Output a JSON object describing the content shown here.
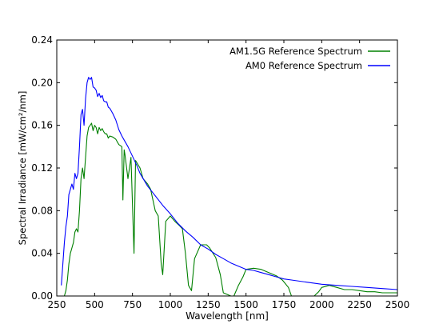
{
  "chart_data": {
    "type": "line",
    "title": "",
    "xlabel": "Wavelength [nm]",
    "ylabel": "Spectral Irradiance [mW/cm²/nm]",
    "xlim": [
      250,
      2500
    ],
    "ylim": [
      0,
      0.24
    ],
    "x_ticks": [
      "250",
      "500",
      "750",
      "1000",
      "1250",
      "1500",
      "1750",
      "2000",
      "2250",
      "2500"
    ],
    "y_ticks": [
      "0.00",
      "0.04",
      "0.08",
      "0.12",
      "0.16",
      "0.20",
      "0.24"
    ],
    "grid": false,
    "legend_position": "top-right",
    "series": [
      {
        "name": "AM1.5G Reference Spectrum",
        "color": "#008000",
        "points": [
          [
            280,
            0.0
          ],
          [
            300,
            0.0
          ],
          [
            310,
            0.005
          ],
          [
            320,
            0.015
          ],
          [
            330,
            0.03
          ],
          [
            340,
            0.04
          ],
          [
            350,
            0.045
          ],
          [
            360,
            0.05
          ],
          [
            370,
            0.06
          ],
          [
            380,
            0.063
          ],
          [
            390,
            0.06
          ],
          [
            400,
            0.08
          ],
          [
            410,
            0.11
          ],
          [
            420,
            0.12
          ],
          [
            430,
            0.11
          ],
          [
            440,
            0.13
          ],
          [
            450,
            0.15
          ],
          [
            460,
            0.158
          ],
          [
            470,
            0.16
          ],
          [
            480,
            0.162
          ],
          [
            490,
            0.155
          ],
          [
            500,
            0.16
          ],
          [
            510,
            0.158
          ],
          [
            520,
            0.152
          ],
          [
            530,
            0.158
          ],
          [
            540,
            0.155
          ],
          [
            550,
            0.157
          ],
          [
            560,
            0.154
          ],
          [
            570,
            0.152
          ],
          [
            580,
            0.152
          ],
          [
            590,
            0.148
          ],
          [
            600,
            0.15
          ],
          [
            620,
            0.149
          ],
          [
            640,
            0.147
          ],
          [
            660,
            0.142
          ],
          [
            680,
            0.14
          ],
          [
            687,
            0.09
          ],
          [
            695,
            0.137
          ],
          [
            700,
            0.133
          ],
          [
            720,
            0.11
          ],
          [
            740,
            0.13
          ],
          [
            760,
            0.04
          ],
          [
            770,
            0.127
          ],
          [
            800,
            0.12
          ],
          [
            820,
            0.11
          ],
          [
            850,
            0.105
          ],
          [
            870,
            0.1
          ],
          [
            900,
            0.08
          ],
          [
            920,
            0.075
          ],
          [
            940,
            0.03
          ],
          [
            950,
            0.02
          ],
          [
            970,
            0.07
          ],
          [
            1000,
            0.075
          ],
          [
            1030,
            0.07
          ],
          [
            1060,
            0.066
          ],
          [
            1080,
            0.063
          ],
          [
            1100,
            0.04
          ],
          [
            1120,
            0.01
          ],
          [
            1140,
            0.005
          ],
          [
            1160,
            0.035
          ],
          [
            1200,
            0.048
          ],
          [
            1240,
            0.048
          ],
          [
            1260,
            0.045
          ],
          [
            1300,
            0.036
          ],
          [
            1330,
            0.02
          ],
          [
            1350,
            0.003
          ],
          [
            1400,
            0.0
          ],
          [
            1420,
            0.0
          ],
          [
            1450,
            0.01
          ],
          [
            1480,
            0.018
          ],
          [
            1500,
            0.025
          ],
          [
            1550,
            0.026
          ],
          [
            1600,
            0.025
          ],
          [
            1650,
            0.022
          ],
          [
            1700,
            0.019
          ],
          [
            1740,
            0.015
          ],
          [
            1780,
            0.008
          ],
          [
            1800,
            0.0
          ],
          [
            1950,
            0.0
          ],
          [
            1980,
            0.004
          ],
          [
            2000,
            0.008
          ],
          [
            2050,
            0.01
          ],
          [
            2100,
            0.008
          ],
          [
            2150,
            0.006
          ],
          [
            2200,
            0.006
          ],
          [
            2250,
            0.005
          ],
          [
            2300,
            0.004
          ],
          [
            2350,
            0.004
          ],
          [
            2400,
            0.003
          ],
          [
            2450,
            0.003
          ],
          [
            2500,
            0.003
          ]
        ]
      },
      {
        "name": "AM0 Reference Spectrum",
        "color": "#0000ff",
        "points": [
          [
            280,
            0.01
          ],
          [
            290,
            0.03
          ],
          [
            300,
            0.05
          ],
          [
            310,
            0.065
          ],
          [
            320,
            0.075
          ],
          [
            330,
            0.095
          ],
          [
            340,
            0.1
          ],
          [
            350,
            0.105
          ],
          [
            360,
            0.1
          ],
          [
            370,
            0.115
          ],
          [
            380,
            0.11
          ],
          [
            390,
            0.115
          ],
          [
            400,
            0.14
          ],
          [
            410,
            0.17
          ],
          [
            420,
            0.175
          ],
          [
            430,
            0.16
          ],
          [
            440,
            0.185
          ],
          [
            450,
            0.2
          ],
          [
            460,
            0.205
          ],
          [
            470,
            0.203
          ],
          [
            480,
            0.205
          ],
          [
            490,
            0.196
          ],
          [
            500,
            0.195
          ],
          [
            510,
            0.193
          ],
          [
            520,
            0.187
          ],
          [
            530,
            0.19
          ],
          [
            540,
            0.186
          ],
          [
            550,
            0.188
          ],
          [
            560,
            0.183
          ],
          [
            570,
            0.182
          ],
          [
            580,
            0.182
          ],
          [
            590,
            0.177
          ],
          [
            600,
            0.176
          ],
          [
            620,
            0.171
          ],
          [
            640,
            0.165
          ],
          [
            660,
            0.156
          ],
          [
            680,
            0.15
          ],
          [
            700,
            0.145
          ],
          [
            720,
            0.14
          ],
          [
            740,
            0.134
          ],
          [
            760,
            0.128
          ],
          [
            780,
            0.122
          ],
          [
            800,
            0.115
          ],
          [
            850,
            0.103
          ],
          [
            900,
            0.094
          ],
          [
            950,
            0.085
          ],
          [
            1000,
            0.077
          ],
          [
            1050,
            0.068
          ],
          [
            1100,
            0.061
          ],
          [
            1150,
            0.055
          ],
          [
            1200,
            0.048
          ],
          [
            1250,
            0.044
          ],
          [
            1300,
            0.039
          ],
          [
            1350,
            0.035
          ],
          [
            1400,
            0.031
          ],
          [
            1450,
            0.028
          ],
          [
            1500,
            0.025
          ],
          [
            1550,
            0.024
          ],
          [
            1600,
            0.022
          ],
          [
            1650,
            0.02
          ],
          [
            1700,
            0.018
          ],
          [
            1750,
            0.016
          ],
          [
            1800,
            0.015
          ],
          [
            1900,
            0.013
          ],
          [
            2000,
            0.011
          ],
          [
            2100,
            0.01
          ],
          [
            2200,
            0.009
          ],
          [
            2300,
            0.008
          ],
          [
            2400,
            0.007
          ],
          [
            2500,
            0.006
          ]
        ]
      }
    ]
  }
}
